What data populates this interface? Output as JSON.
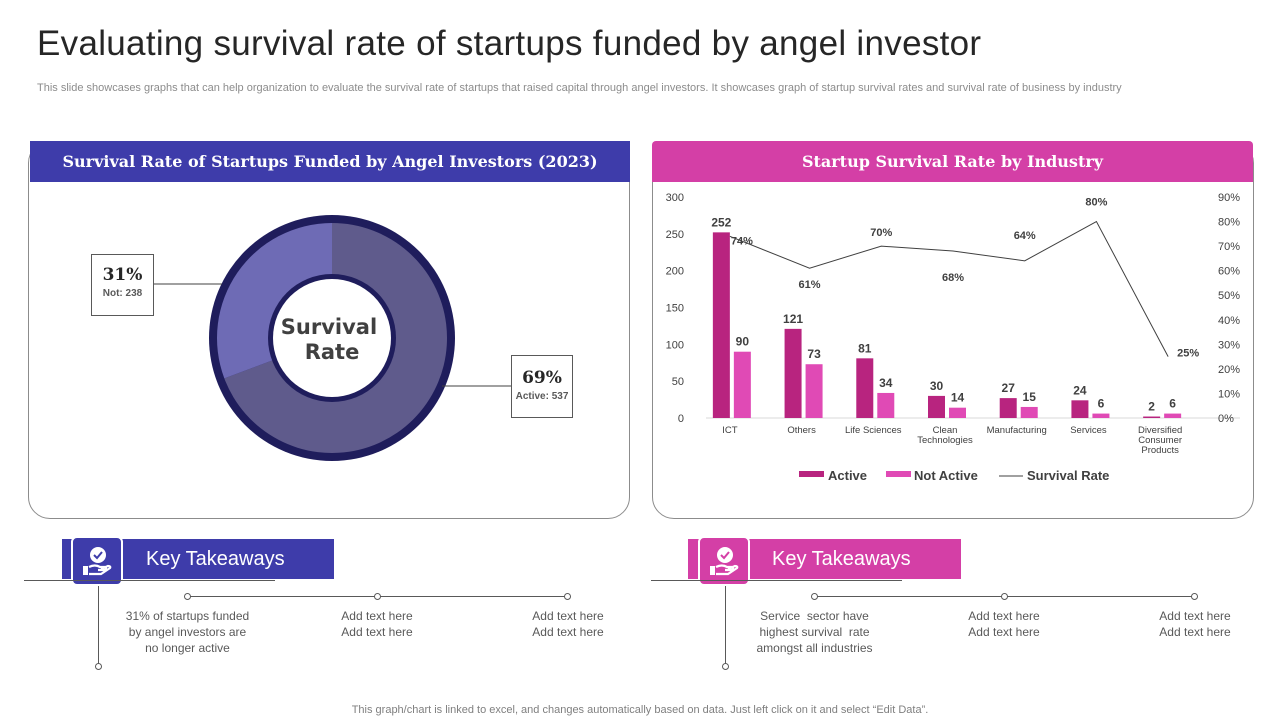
{
  "header": {
    "title": "Evaluating survival rate of startups funded by angel investor",
    "subtitle": "This slide showcases graphs that can help organization to evaluate the survival rate of startups that raised capital through angel investors. It showcases graph of startup survival rates and survival rate of business by industry"
  },
  "colors": {
    "indigo": "#3e3caa",
    "magenta": "#d43fa6",
    "active_bar": "#b8247f",
    "not_active_bar": "#e04ab5"
  },
  "left_panel": {
    "title": "Survival Rate of Startups Funded by Angel Investors (2023)",
    "center_label_line1": "Survival",
    "center_label_line2": "Rate",
    "callout_not": {
      "pct": "31%",
      "label": "Not: 238"
    },
    "callout_active": {
      "pct": "69%",
      "label": "Active: 537"
    }
  },
  "right_panel": {
    "title": "Startup Survival Rate by Industry"
  },
  "chart_data": [
    {
      "type": "pie",
      "title": "Survival Rate of Startups Funded by Angel Investors (2023)",
      "categories": [
        "Active",
        "Not"
      ],
      "values": [
        537,
        238
      ],
      "percent_labels": [
        "69%",
        "31%"
      ],
      "donut": true,
      "colors": [
        "#5f5b8c",
        "#6e6bb5"
      ]
    },
    {
      "type": "bar",
      "title": "Startup Survival Rate by Industry",
      "categories": [
        "ICT",
        "Others",
        "Life Sciences",
        "Clean Technologies",
        "Manufacturing",
        "Services",
        "Diversified Consumer Products"
      ],
      "category_lines": [
        [
          "ICT"
        ],
        [
          "Others"
        ],
        [
          "Life Sciences"
        ],
        [
          "Clean",
          "Technologies"
        ],
        [
          "Manufacturing"
        ],
        [
          "Services"
        ],
        [
          "Diversified",
          "Consumer",
          "Products"
        ]
      ],
      "series": [
        {
          "name": "Active",
          "kind": "bar",
          "color": "#b8247f",
          "values": [
            252,
            121,
            81,
            30,
            27,
            24,
            2
          ]
        },
        {
          "name": "Not Active",
          "kind": "bar",
          "color": "#e04ab5",
          "values": [
            90,
            73,
            34,
            14,
            15,
            6,
            6
          ]
        },
        {
          "name": "Survival Rate",
          "kind": "line",
          "axis": "right",
          "color": "#404040",
          "values": [
            74,
            61,
            70,
            68,
            64,
            80,
            25
          ],
          "labels": [
            "74%",
            "61%",
            "70%",
            "68%",
            "64%",
            "80%",
            "25%"
          ]
        }
      ],
      "ylim": [
        0,
        300
      ],
      "yticks": [
        0,
        50,
        100,
        150,
        200,
        250,
        300
      ],
      "y2lim": [
        0,
        90
      ],
      "y2ticks": [
        "0%",
        "10%",
        "20%",
        "30%",
        "40%",
        "50%",
        "60%",
        "70%",
        "80%",
        "90%"
      ],
      "legend": [
        "Active",
        "Not Active",
        "Survival Rate"
      ],
      "legend_position": "bottom"
    }
  ],
  "takeaways_left": {
    "title": "Key Takeaways",
    "items": [
      {
        "l1": "31% of startups funded",
        "l2": "by angel investors are",
        "l3": "no longer active"
      },
      {
        "l1": "Add text here",
        "l2": "Add text here"
      },
      {
        "l1": "Add text here",
        "l2": "Add text here"
      }
    ]
  },
  "takeaways_right": {
    "title": "Key Takeaways",
    "items": [
      {
        "l1": "Service  sector have",
        "l2": "highest survival  rate",
        "l3": "amongst all industries"
      },
      {
        "l1": "Add text here",
        "l2": "Add text here"
      },
      {
        "l1": "Add text here",
        "l2": "Add text here"
      }
    ]
  },
  "footer": "This graph/chart is linked to excel,  and changes automatically based on data. Just left click on it and select “Edit Data”."
}
